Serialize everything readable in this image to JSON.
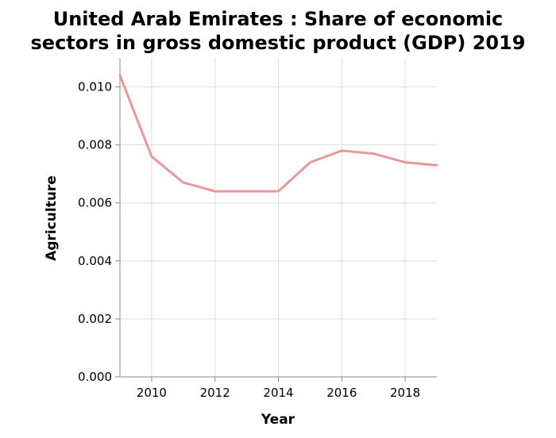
{
  "chart_data": {
    "type": "line",
    "title_lines": [
      "United Arab Emirates : Share of economic",
      "sectors in gross domestic product (GDP) 2019"
    ],
    "xlabel": "Year",
    "ylabel": "Agriculture",
    "xlim": [
      2009,
      2019
    ],
    "ylim": [
      0,
      0.011
    ],
    "x_ticks": [
      2010,
      2012,
      2014,
      2016,
      2018
    ],
    "y_ticks": [
      0.0,
      0.002,
      0.004,
      0.006,
      0.008,
      0.01
    ],
    "y_tick_labels": [
      "0.000",
      "0.002",
      "0.004",
      "0.006",
      "0.008",
      "0.010"
    ],
    "x_tick_labels": [
      "2010",
      "2012",
      "2014",
      "2016",
      "2018"
    ],
    "grid": true,
    "series": [
      {
        "color": "#e8979b",
        "x": [
          2009,
          2010,
          2011,
          2012,
          2013,
          2014,
          2015,
          2016,
          2017,
          2018,
          2019
        ],
        "values": [
          0.0104,
          0.0076,
          0.0067,
          0.0064,
          0.0064,
          0.0064,
          0.0074,
          0.0078,
          0.0077,
          0.0074,
          0.0073
        ]
      }
    ]
  }
}
